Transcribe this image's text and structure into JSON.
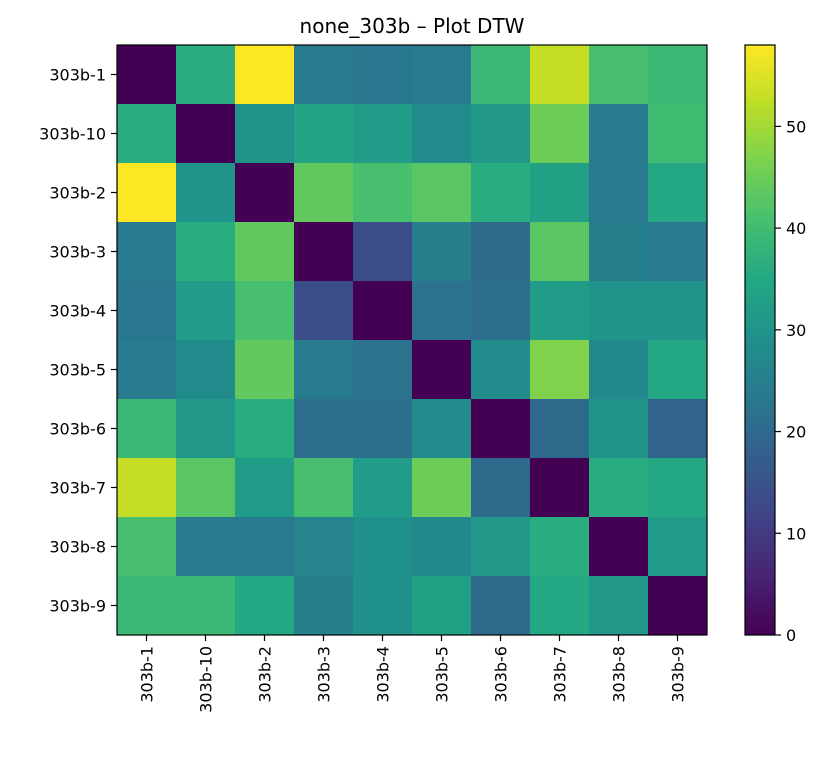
{
  "chart_data": {
    "type": "heatmap",
    "title": "none_303b – Plot DTW",
    "xlabel": "",
    "ylabel": "",
    "row_labels": [
      "303b-1",
      "303b-10",
      "303b-2",
      "303b-3",
      "303b-4",
      "303b-5",
      "303b-6",
      "303b-7",
      "303b-8",
      "303b-9"
    ],
    "col_labels": [
      "303b-1",
      "303b-10",
      "303b-2",
      "303b-3",
      "303b-4",
      "303b-5",
      "303b-6",
      "303b-7",
      "303b-8",
      "303b-9"
    ],
    "values": [
      [
        0,
        36,
        58,
        24,
        23,
        24,
        39,
        53,
        41,
        39
      ],
      [
        36,
        0,
        30,
        34,
        32,
        28,
        31,
        45,
        24,
        40
      ],
      [
        58,
        30,
        0,
        44,
        41,
        43,
        36,
        33,
        24,
        35
      ],
      [
        24,
        36,
        44,
        0,
        14,
        25,
        20,
        43,
        25,
        24
      ],
      [
        23,
        32,
        41,
        14,
        0,
        22,
        21,
        32,
        30,
        30
      ],
      [
        24,
        28,
        44,
        24,
        22,
        0,
        28,
        47,
        27,
        35
      ],
      [
        39,
        31,
        36,
        21,
        21,
        28,
        0,
        20,
        30,
        19
      ],
      [
        53,
        43,
        32,
        41,
        32,
        45,
        20,
        0,
        36,
        35
      ],
      [
        41,
        24,
        24,
        26,
        29,
        27,
        31,
        36,
        0,
        32
      ],
      [
        39,
        39,
        35,
        25,
        29,
        33,
        20,
        35,
        31,
        0
      ]
    ],
    "vmin": 0,
    "vmax": 58,
    "colormap": "viridis",
    "colorbar_ticks": [
      0,
      10,
      20,
      30,
      40,
      50
    ],
    "grid": false
  }
}
